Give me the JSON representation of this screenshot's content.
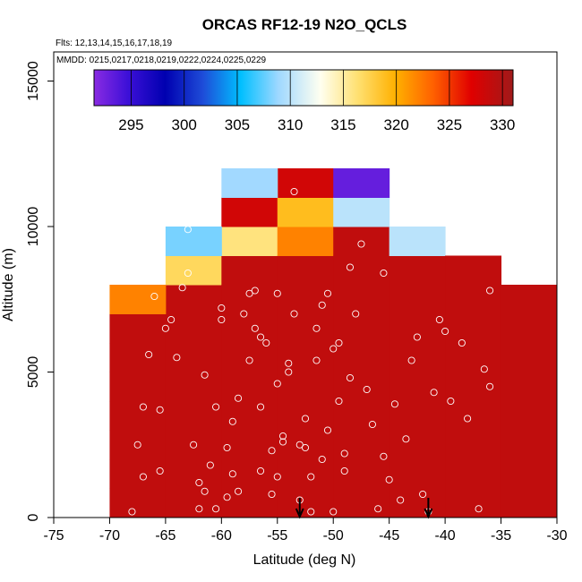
{
  "chart_data": {
    "type": "heatmap",
    "title": "ORCAS RF12-19 N2O_QCLS",
    "flights_text": "Flts: 12,13,14,15,16,17,18,19",
    "dates_text": "MMDD: 0215,0217,0218,0219,0222,0224,0225,0229",
    "xlabel": "Latitude (deg N)",
    "ylabel": "Altitude (m)",
    "xlim": [
      -75,
      -30
    ],
    "ylim": [
      0,
      16000
    ],
    "x_ticks": [
      -75,
      -70,
      -65,
      -60,
      -55,
      -50,
      -45,
      -40,
      -35,
      -30
    ],
    "x_tick_labels": [
      "-75",
      "-70",
      "-65",
      "-60",
      "-55",
      "-50",
      "-45",
      "-40",
      "-35",
      "-30"
    ],
    "y_ticks": [
      0,
      5000,
      10000,
      15000
    ],
    "y_tick_labels": [
      "0",
      "5000",
      "10000",
      "15000"
    ],
    "colorbar": {
      "range": [
        291.5,
        331
      ],
      "ticks": [
        295,
        300,
        305,
        310,
        315,
        320,
        325,
        330
      ],
      "tick_labels": [
        "295",
        "300",
        "305",
        "310",
        "315",
        "320",
        "325",
        "330"
      ]
    },
    "cell_width_deg": 5,
    "cell_height_m": 1000,
    "cells": [
      {
        "lat": -70,
        "alt": 7000,
        "value": 322
      },
      {
        "lat": -65,
        "alt": 8000,
        "value": 317
      },
      {
        "lat": -65,
        "alt": 9000,
        "value": 308
      },
      {
        "lat": -60,
        "alt": 9000,
        "value": 316
      },
      {
        "lat": -60,
        "alt": 10000,
        "value": 328
      },
      {
        "lat": -60,
        "alt": 11000,
        "value": 309
      },
      {
        "lat": -55,
        "alt": 9000,
        "value": 322
      },
      {
        "lat": -55,
        "alt": 10000,
        "value": 319
      },
      {
        "lat": -55,
        "alt": 11000,
        "value": 328
      },
      {
        "lat": -50,
        "alt": 10000,
        "value": 310
      },
      {
        "lat": -50,
        "alt": 11000,
        "value": 293
      },
      {
        "lat": -45,
        "alt": 9000,
        "value": 310
      }
    ],
    "background_value": 329,
    "columns": [
      {
        "lat": -70,
        "top": 7000
      },
      {
        "lat": -65,
        "top": 9000
      },
      {
        "lat": -60,
        "top": 11000
      },
      {
        "lat": -55,
        "top": 12000
      },
      {
        "lat": -50,
        "top": 12000
      },
      {
        "lat": -45,
        "top": 10000
      },
      {
        "lat": -40,
        "top": 9000
      },
      {
        "lat": -35,
        "top": 8000
      }
    ],
    "arrows_lat": [
      -53,
      -41.5
    ],
    "points": [
      [
        -68,
        200
      ],
      [
        -67.5,
        2500
      ],
      [
        -67,
        1400
      ],
      [
        -67,
        3800
      ],
      [
        -66.5,
        5600
      ],
      [
        -66,
        7600
      ],
      [
        -65.5,
        1600
      ],
      [
        -65.5,
        3700
      ],
      [
        -65,
        6500
      ],
      [
        -64.5,
        6800
      ],
      [
        -64,
        5500
      ],
      [
        -63.5,
        7900
      ],
      [
        -63,
        8400
      ],
      [
        -63,
        9900
      ],
      [
        -62.5,
        2500
      ],
      [
        -62,
        1200
      ],
      [
        -62,
        300
      ],
      [
        -61.5,
        4900
      ],
      [
        -61.5,
        900
      ],
      [
        -61,
        1800
      ],
      [
        -60.5,
        3800
      ],
      [
        -60.5,
        300
      ],
      [
        -60,
        6800
      ],
      [
        -60,
        7200
      ],
      [
        -59.5,
        700
      ],
      [
        -59.5,
        2400
      ],
      [
        -59,
        1500
      ],
      [
        -59,
        3300
      ],
      [
        -58.5,
        900
      ],
      [
        -58.5,
        4100
      ],
      [
        -58,
        7000
      ],
      [
        -57.5,
        5400
      ],
      [
        -57.5,
        7700
      ],
      [
        -57,
        6500
      ],
      [
        -57,
        7800
      ],
      [
        -56.5,
        3800
      ],
      [
        -56.5,
        1600
      ],
      [
        -56.5,
        6200
      ],
      [
        -56,
        6000
      ],
      [
        -55.5,
        800
      ],
      [
        -55.5,
        2300
      ],
      [
        -55,
        1400
      ],
      [
        -55,
        4600
      ],
      [
        -55,
        7700
      ],
      [
        -54.5,
        2600
      ],
      [
        -54.5,
        2800
      ],
      [
        -54,
        5300
      ],
      [
        -54,
        5000
      ],
      [
        -53.5,
        7000
      ],
      [
        -53.5,
        11200
      ],
      [
        -53,
        600
      ],
      [
        -53,
        2500
      ],
      [
        -52.5,
        3400
      ],
      [
        -52.5,
        2400
      ],
      [
        -52,
        1400
      ],
      [
        -52,
        200
      ],
      [
        -51.5,
        6500
      ],
      [
        -51.5,
        5400
      ],
      [
        -51,
        2000
      ],
      [
        -51,
        7300
      ],
      [
        -50.5,
        3000
      ],
      [
        -50.5,
        7700
      ],
      [
        -50,
        200
      ],
      [
        -50,
        5800
      ],
      [
        -49.5,
        6000
      ],
      [
        -49.5,
        4000
      ],
      [
        -49,
        2200
      ],
      [
        -49,
        1600
      ],
      [
        -48.5,
        8600
      ],
      [
        -48.5,
        4800
      ],
      [
        -48,
        7000
      ],
      [
        -47.5,
        9400
      ],
      [
        -47,
        4400
      ],
      [
        -46.5,
        3200
      ],
      [
        -46,
        300
      ],
      [
        -45.5,
        8400
      ],
      [
        -45.5,
        2100
      ],
      [
        -45,
        1300
      ],
      [
        -44.5,
        3900
      ],
      [
        -44,
        600
      ],
      [
        -43.5,
        2700
      ],
      [
        -43,
        5400
      ],
      [
        -42.5,
        6200
      ],
      [
        -42,
        800
      ],
      [
        -41.5,
        200
      ],
      [
        -41,
        4300
      ],
      [
        -40.5,
        6800
      ],
      [
        -40,
        6400
      ],
      [
        -39.5,
        4000
      ],
      [
        -38.5,
        6000
      ],
      [
        -38,
        3400
      ],
      [
        -37,
        300
      ],
      [
        -36.5,
        5100
      ],
      [
        -36,
        7800
      ],
      [
        -36,
        4500
      ]
    ]
  }
}
